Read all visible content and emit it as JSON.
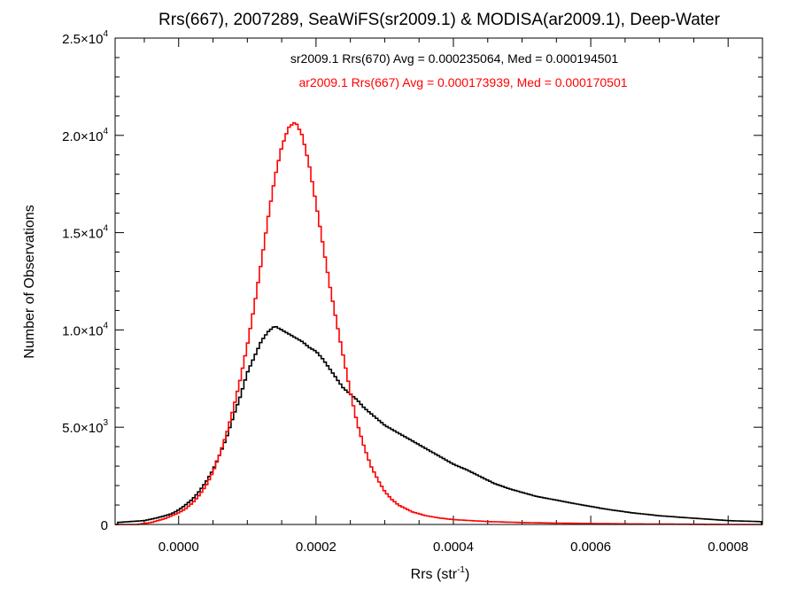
{
  "chart_data": {
    "type": "line",
    "title": "Rrs(667), 2007289, SeaWiFS(sr2009.1) & MODISA(ar2009.1), Deep-Water",
    "xlabel": "Rrs (str",
    "xlabel_sup": "-1",
    "xlabel_end": ")",
    "ylabel": "Number of Observations",
    "xlim": [
      -9.25e-05,
      0.00085
    ],
    "ylim": [
      0,
      25000
    ],
    "grid": false,
    "legend_placement": "top-center",
    "x_ticks": [
      {
        "value": 0.0,
        "label": "0.0000"
      },
      {
        "value": 0.0002,
        "label": "0.0002"
      },
      {
        "value": 0.0004,
        "label": "0.0004"
      },
      {
        "value": 0.0006,
        "label": "0.0006"
      },
      {
        "value": 0.0008,
        "label": "0.0008"
      }
    ],
    "y_ticks": [
      {
        "value": 0,
        "mant": "0",
        "exp": ""
      },
      {
        "value": 5000,
        "mant": "5.0×10",
        "exp": "3"
      },
      {
        "value": 10000,
        "mant": "1.0×10",
        "exp": "4"
      },
      {
        "value": 15000,
        "mant": "1.5×10",
        "exp": "4"
      },
      {
        "value": 20000,
        "mant": "2.0×10",
        "exp": "4"
      },
      {
        "value": 25000,
        "mant": "2.5×10",
        "exp": "4"
      }
    ],
    "series": [
      {
        "label": "sr2009.1 Rrs(670) Avg = 0.000235064, Med = 0.000194501",
        "color": "#000000",
        "x": [
          -9e-05,
          -7e-05,
          -5e-05,
          -3e-05,
          -2e-05,
          -1e-05,
          0.0,
          1e-05,
          2e-05,
          3e-05,
          4e-05,
          5e-05,
          6e-05,
          7e-05,
          8e-05,
          9e-05,
          0.0001,
          0.00011,
          0.00012,
          0.00013,
          0.00014,
          0.00015,
          0.00016,
          0.00017,
          0.00018,
          0.00019,
          0.0002,
          0.00021,
          0.00022,
          0.00023,
          0.00024,
          0.00025,
          0.00026,
          0.00027,
          0.00028,
          0.00029,
          0.0003,
          0.00032,
          0.00034,
          0.00036,
          0.00038,
          0.0004,
          0.00042,
          0.00044,
          0.00046,
          0.00048,
          0.0005,
          0.00052,
          0.00055,
          0.00058,
          0.00062,
          0.00066,
          0.0007,
          0.00075,
          0.0008,
          0.00085
        ],
        "y": [
          100,
          150,
          200,
          350,
          450,
          550,
          750,
          1000,
          1300,
          1700,
          2200,
          2800,
          3600,
          4500,
          5600,
          6600,
          7800,
          8600,
          9400,
          9900,
          10200,
          10000,
          9800,
          9600,
          9400,
          9100,
          8900,
          8500,
          8000,
          7500,
          7000,
          6700,
          6400,
          6000,
          5700,
          5400,
          5100,
          4700,
          4300,
          3900,
          3500,
          3100,
          2800,
          2450,
          2100,
          1850,
          1650,
          1450,
          1250,
          1050,
          800,
          600,
          450,
          320,
          200,
          140
        ]
      },
      {
        "label": "ar2009.1 Rrs(667) Avg = 0.000173939, Med = 0.000170501",
        "color": "#ff0000",
        "x": [
          -6e-05,
          -4e-05,
          -2e-05,
          0.0,
          1e-05,
          2e-05,
          3e-05,
          4e-05,
          5e-05,
          6e-05,
          7e-05,
          8e-05,
          9e-05,
          0.0001,
          0.00011,
          0.00012,
          0.00013,
          0.00014,
          0.00015,
          0.00016,
          0.00017,
          0.00018,
          0.00019,
          0.0002,
          0.00021,
          0.00022,
          0.00023,
          0.00024,
          0.00025,
          0.00026,
          0.00027,
          0.00028,
          0.00029,
          0.0003,
          0.00031,
          0.00032,
          0.00034,
          0.00036,
          0.00038,
          0.0004,
          0.00045,
          0.0005,
          0.00055,
          0.0006,
          0.00065,
          0.0007,
          0.0008
        ],
        "y": [
          0,
          100,
          300,
          600,
          800,
          1100,
          1500,
          2000,
          2700,
          3600,
          4700,
          6000,
          7500,
          9200,
          11200,
          13400,
          15700,
          17800,
          19400,
          20400,
          20700,
          20000,
          18500,
          16500,
          14400,
          12300,
          10400,
          8600,
          6800,
          5200,
          4000,
          3000,
          2300,
          1700,
          1300,
          1000,
          650,
          450,
          330,
          250,
          150,
          100,
          70,
          50,
          30,
          20,
          0
        ]
      }
    ]
  }
}
